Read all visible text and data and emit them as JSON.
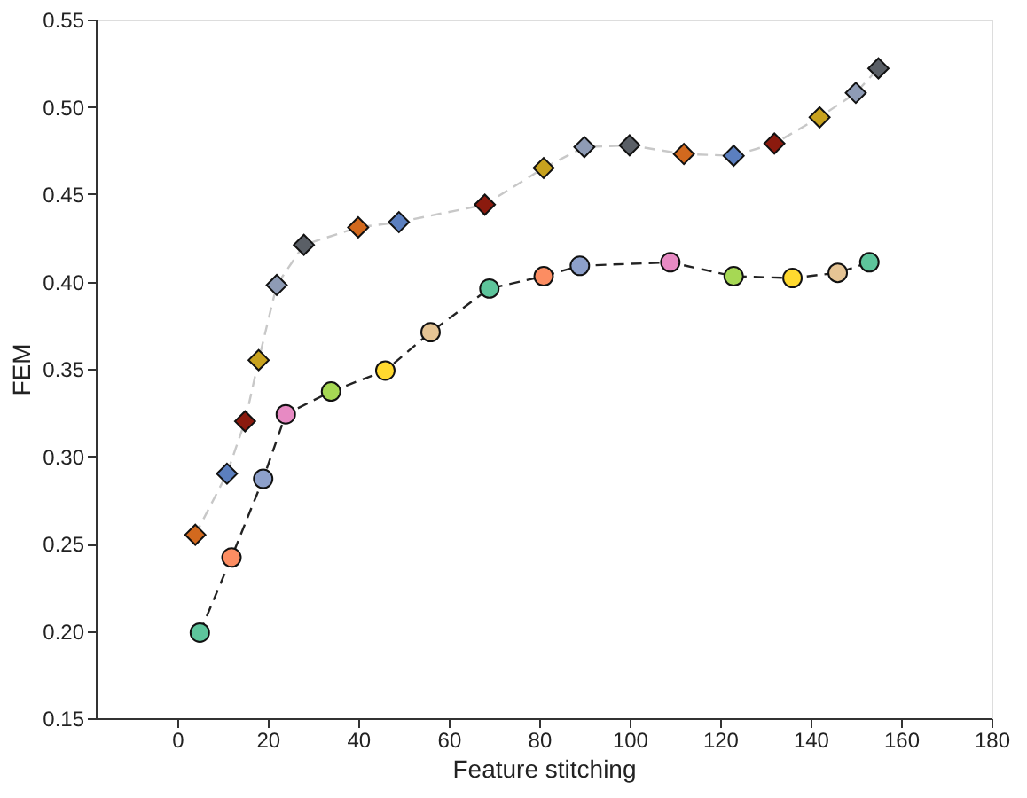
{
  "chart_data": {
    "type": "line",
    "xlabel": "Feature stitching",
    "ylabel": "FEM",
    "xlim": [
      -18,
      180
    ],
    "xticks": [
      0,
      20,
      40,
      60,
      80,
      100,
      120,
      140,
      160,
      180
    ],
    "ylim": [
      0.15,
      0.55
    ],
    "yticks": [
      {
        "value": 0.15,
        "label": "0.15"
      },
      {
        "value": 0.2,
        "label": "0.20"
      },
      {
        "value": 0.25,
        "label": "0.25"
      },
      {
        "value": 0.3,
        "label": "0.30"
      },
      {
        "value": 0.35,
        "label": "0.35"
      },
      {
        "value": 0.4,
        "label": "0.40"
      },
      {
        "value": 0.45,
        "label": "0.45"
      },
      {
        "value": 0.5,
        "label": "0.50"
      },
      {
        "value": 0.55,
        "label": "0.55"
      }
    ],
    "grid": false,
    "line_style": "dashed",
    "series": [
      {
        "color": "#c8c8c8",
        "marker": "diamond",
        "x": [
          4,
          11,
          15,
          18,
          22,
          28,
          40,
          49,
          68,
          81,
          90,
          100,
          112,
          123,
          132,
          142,
          150,
          155
        ],
        "values": [
          0.255,
          0.29,
          0.32,
          0.355,
          0.398,
          0.421,
          0.431,
          0.434,
          0.444,
          0.465,
          0.477,
          0.478,
          0.473,
          0.472,
          0.479,
          0.494,
          0.508,
          0.522
        ],
        "colors": [
          "#d2691e",
          "#5b7fbf",
          "#8b1a0e",
          "#c8a21e",
          "#8e9bb5",
          "#5a5f66",
          "#d2691e",
          "#5b7fbf",
          "#8b1a0e",
          "#c8a21e",
          "#8e9bb5",
          "#5a5f66",
          "#d2691e",
          "#5b7fbf",
          "#8b1a0e",
          "#c8a21e",
          "#8e9bb5",
          "#5a5f66"
        ]
      },
      {
        "color": "#222222",
        "marker": "circle",
        "x": [
          5,
          12,
          19,
          24,
          34,
          46,
          56,
          69,
          81,
          89,
          109,
          123,
          136,
          146,
          153
        ],
        "values": [
          0.199,
          0.242,
          0.287,
          0.324,
          0.337,
          0.349,
          0.371,
          0.396,
          0.403,
          0.409,
          0.411,
          0.403,
          0.402,
          0.405,
          0.411
        ],
        "colors": [
          "#5dc49b",
          "#fc8d62",
          "#8da0cb",
          "#e78ac3",
          "#a6d854",
          "#ffd92f",
          "#e5c494",
          "#5dc49b",
          "#fc8d62",
          "#8da0cb",
          "#e78ac3",
          "#a6d854",
          "#ffd92f",
          "#e5c494",
          "#5dc49b"
        ]
      }
    ]
  }
}
